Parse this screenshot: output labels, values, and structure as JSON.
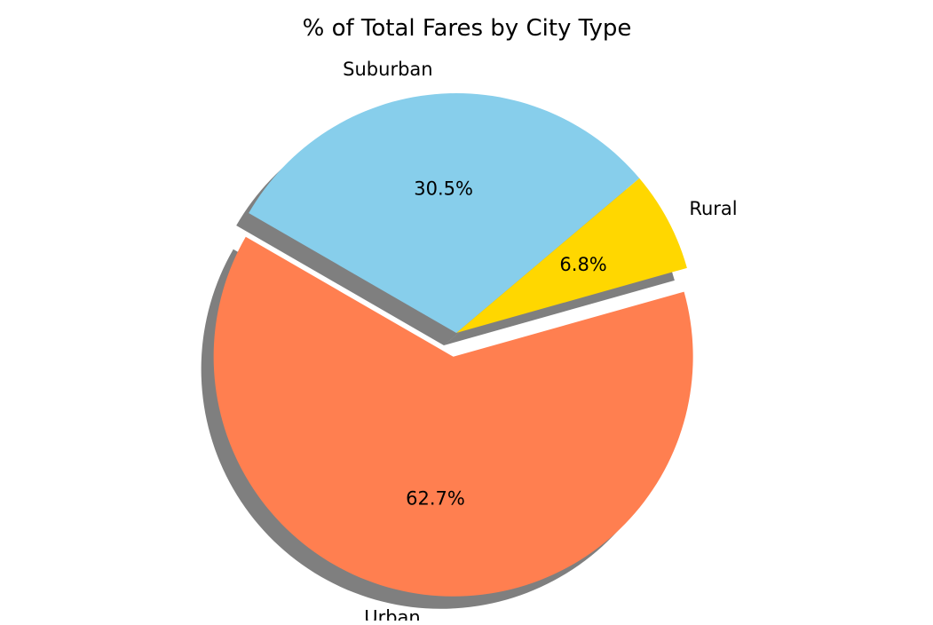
{
  "chart_data": {
    "type": "pie",
    "title": "% of Total Fares by City Type",
    "shadow": true,
    "exploded": "Urban",
    "slices": [
      {
        "label": "Urban",
        "value": 62.7,
        "pct_label": "62.7%",
        "color": "#FF7F50"
      },
      {
        "label": "Rural",
        "value": 6.8,
        "pct_label": "6.8%",
        "color": "#FFD700"
      },
      {
        "label": "Suburban",
        "value": 30.5,
        "pct_label": "30.5%",
        "color": "#87CEEB"
      }
    ],
    "shadow_color": "#000000"
  }
}
